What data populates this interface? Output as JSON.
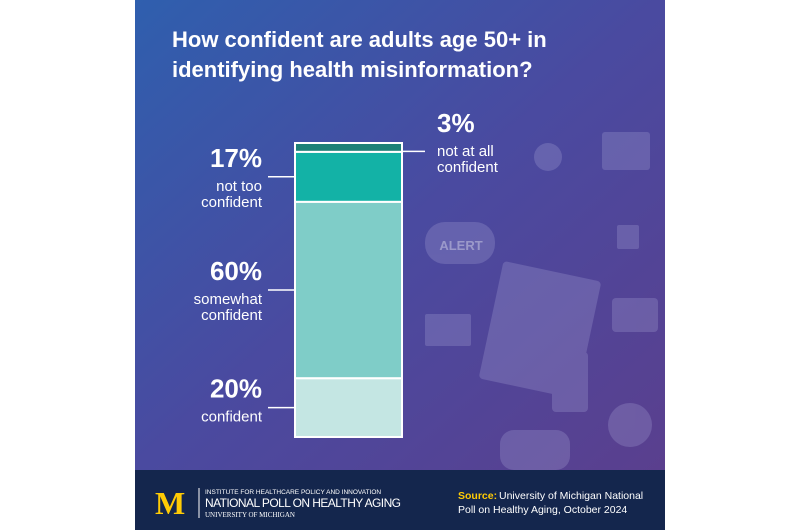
{
  "chart_data": {
    "type": "stacked-column",
    "title": "How confident are adults age 50+ in\nidentifying health misinformation?",
    "categories": [
      "confident",
      "somewhat\nconfident",
      "not too\nconfident",
      "not at all\nconfident"
    ],
    "values": [
      20,
      60,
      17,
      3
    ],
    "value_labels": [
      "20%",
      "60%",
      "17%",
      "3%"
    ],
    "colors": [
      "#c4e6e3",
      "#7fcdc8",
      "#13b2a6",
      "#1d8177"
    ]
  },
  "background_text": "ALERT",
  "footer": {
    "logo": "M",
    "institute": "INSTITUTE FOR HEALTHCARE POLICY AND INNOVATION",
    "poll": "NATIONAL POLL ON HEALTHY AGING",
    "university": "UNIVERSITY OF MICHIGAN",
    "source_label": "Source:",
    "source_text": "University of Michigan National\nPoll on Healthy Aging, October 2024"
  }
}
